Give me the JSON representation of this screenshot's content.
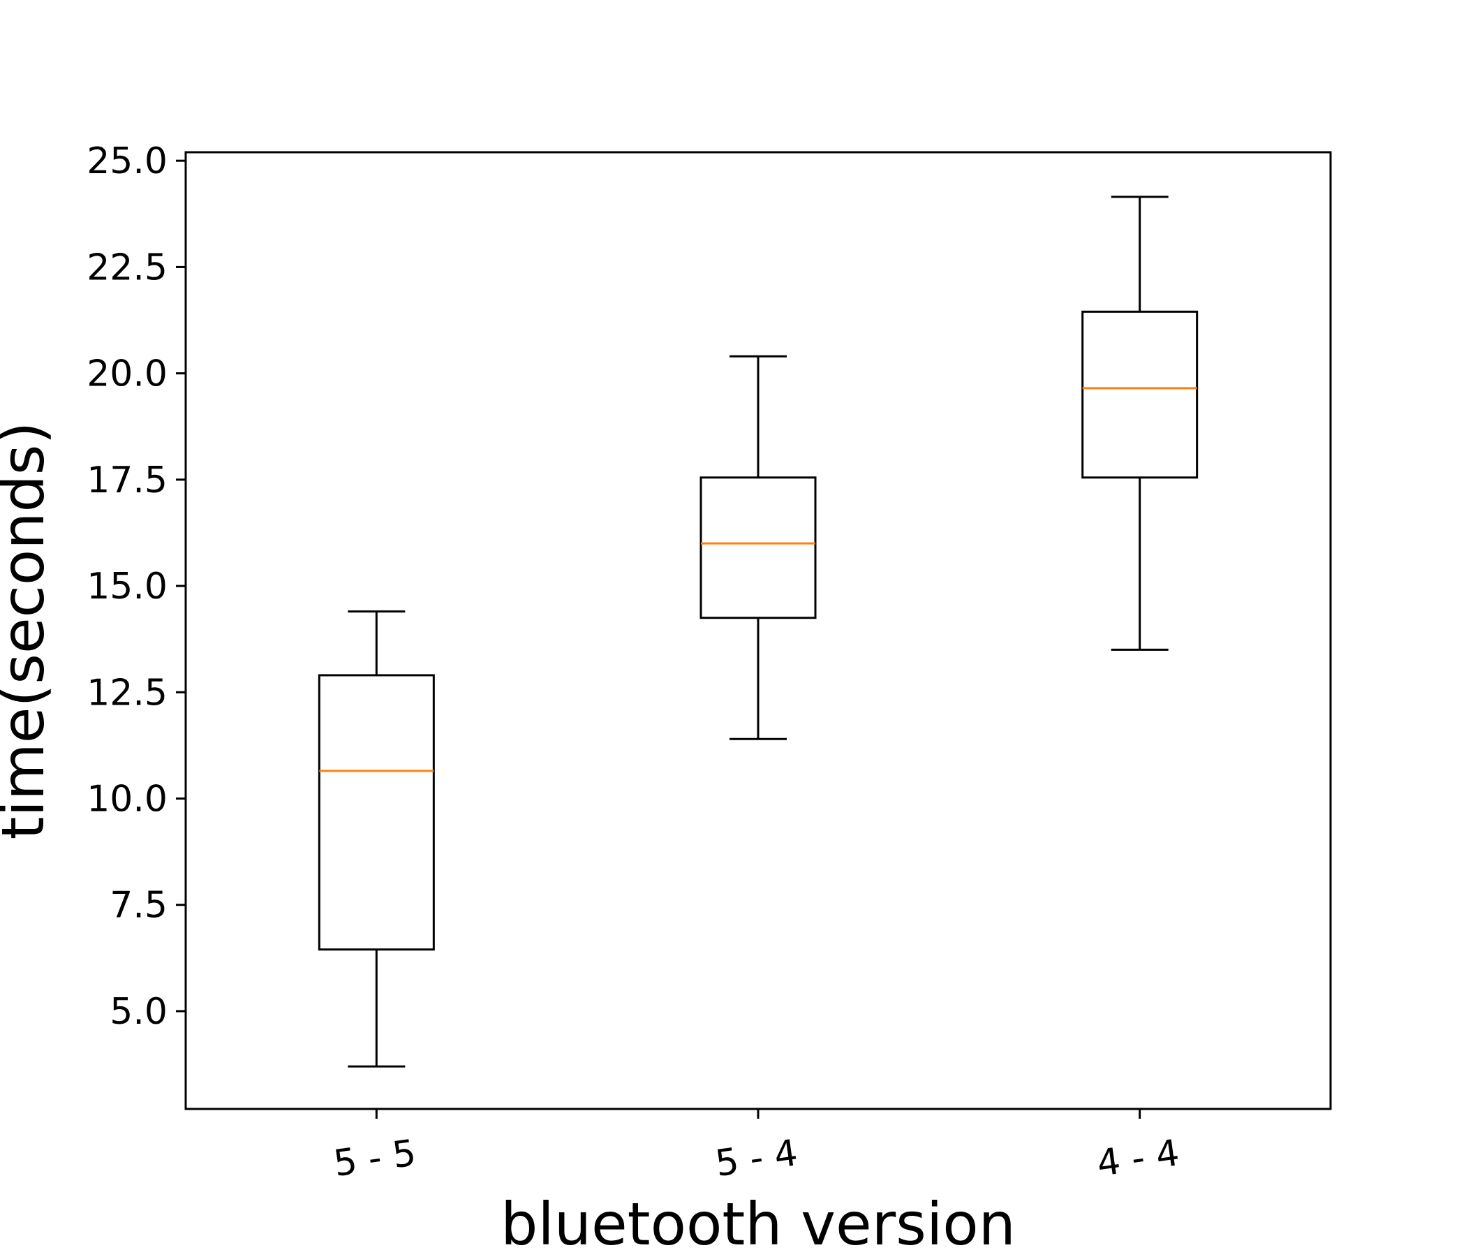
{
  "chart_data": {
    "type": "box",
    "categories": [
      "5 - 5",
      "5 - 4",
      "4 - 4"
    ],
    "xlabel": "bluetooth version",
    "ylabel": "time(seconds)",
    "ylim": [
      2.7,
      25.2
    ],
    "yticks": [
      "5.0",
      "7.5",
      "10.0",
      "12.5",
      "15.0",
      "17.5",
      "20.0",
      "22.5",
      "25.0"
    ],
    "boxes": [
      {
        "whisker_low": 3.7,
        "q1": 6.45,
        "median": 10.65,
        "q3": 12.9,
        "whisker_high": 14.4
      },
      {
        "whisker_low": 11.4,
        "q1": 14.25,
        "median": 16.0,
        "q3": 17.55,
        "whisker_high": 20.4
      },
      {
        "whisker_low": 13.5,
        "q1": 17.55,
        "median": 19.65,
        "q3": 21.45,
        "whisker_high": 24.15
      }
    ],
    "grid": false,
    "colors": {
      "box": "#000000",
      "median": "#ff7f0e"
    }
  }
}
